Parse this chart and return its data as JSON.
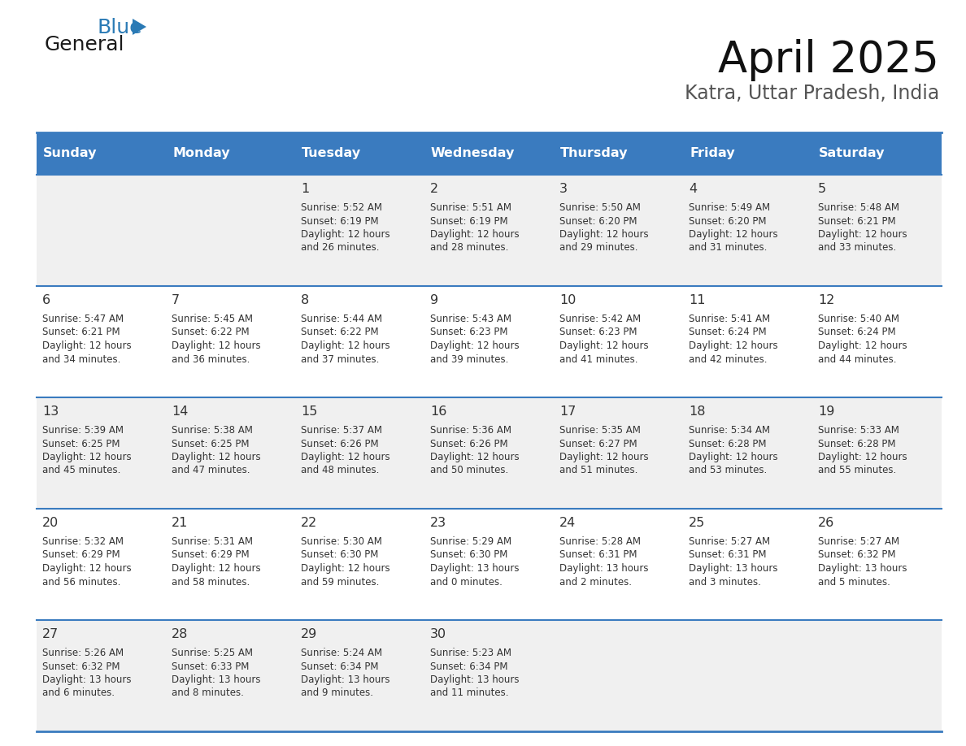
{
  "title": "April 2025",
  "subtitle": "Katra, Uttar Pradesh, India",
  "days_of_week": [
    "Sunday",
    "Monday",
    "Tuesday",
    "Wednesday",
    "Thursday",
    "Friday",
    "Saturday"
  ],
  "header_bg": "#3a7bbf",
  "header_text_color": "#ffffff",
  "row_bg_even": "#f0f0f0",
  "row_bg_odd": "#ffffff",
  "cell_text_color": "#333333",
  "border_color": "#3a7bbf",
  "logo_general_color": "#1a1a1a",
  "logo_blue_color": "#2a7ab5",
  "weeks": [
    [
      {
        "day": null,
        "sunrise": null,
        "sunset": null,
        "daylight_h": null,
        "daylight_m": null
      },
      {
        "day": null,
        "sunrise": null,
        "sunset": null,
        "daylight_h": null,
        "daylight_m": null
      },
      {
        "day": 1,
        "sunrise": "5:52 AM",
        "sunset": "6:19 PM",
        "daylight_h": "12 hours",
        "daylight_m": "26 minutes."
      },
      {
        "day": 2,
        "sunrise": "5:51 AM",
        "sunset": "6:19 PM",
        "daylight_h": "12 hours",
        "daylight_m": "28 minutes."
      },
      {
        "day": 3,
        "sunrise": "5:50 AM",
        "sunset": "6:20 PM",
        "daylight_h": "12 hours",
        "daylight_m": "29 minutes."
      },
      {
        "day": 4,
        "sunrise": "5:49 AM",
        "sunset": "6:20 PM",
        "daylight_h": "12 hours",
        "daylight_m": "31 minutes."
      },
      {
        "day": 5,
        "sunrise": "5:48 AM",
        "sunset": "6:21 PM",
        "daylight_h": "12 hours",
        "daylight_m": "33 minutes."
      }
    ],
    [
      {
        "day": 6,
        "sunrise": "5:47 AM",
        "sunset": "6:21 PM",
        "daylight_h": "12 hours",
        "daylight_m": "34 minutes."
      },
      {
        "day": 7,
        "sunrise": "5:45 AM",
        "sunset": "6:22 PM",
        "daylight_h": "12 hours",
        "daylight_m": "36 minutes."
      },
      {
        "day": 8,
        "sunrise": "5:44 AM",
        "sunset": "6:22 PM",
        "daylight_h": "12 hours",
        "daylight_m": "37 minutes."
      },
      {
        "day": 9,
        "sunrise": "5:43 AM",
        "sunset": "6:23 PM",
        "daylight_h": "12 hours",
        "daylight_m": "39 minutes."
      },
      {
        "day": 10,
        "sunrise": "5:42 AM",
        "sunset": "6:23 PM",
        "daylight_h": "12 hours",
        "daylight_m": "41 minutes."
      },
      {
        "day": 11,
        "sunrise": "5:41 AM",
        "sunset": "6:24 PM",
        "daylight_h": "12 hours",
        "daylight_m": "42 minutes."
      },
      {
        "day": 12,
        "sunrise": "5:40 AM",
        "sunset": "6:24 PM",
        "daylight_h": "12 hours",
        "daylight_m": "44 minutes."
      }
    ],
    [
      {
        "day": 13,
        "sunrise": "5:39 AM",
        "sunset": "6:25 PM",
        "daylight_h": "12 hours",
        "daylight_m": "45 minutes."
      },
      {
        "day": 14,
        "sunrise": "5:38 AM",
        "sunset": "6:25 PM",
        "daylight_h": "12 hours",
        "daylight_m": "47 minutes."
      },
      {
        "day": 15,
        "sunrise": "5:37 AM",
        "sunset": "6:26 PM",
        "daylight_h": "12 hours",
        "daylight_m": "48 minutes."
      },
      {
        "day": 16,
        "sunrise": "5:36 AM",
        "sunset": "6:26 PM",
        "daylight_h": "12 hours",
        "daylight_m": "50 minutes."
      },
      {
        "day": 17,
        "sunrise": "5:35 AM",
        "sunset": "6:27 PM",
        "daylight_h": "12 hours",
        "daylight_m": "51 minutes."
      },
      {
        "day": 18,
        "sunrise": "5:34 AM",
        "sunset": "6:28 PM",
        "daylight_h": "12 hours",
        "daylight_m": "53 minutes."
      },
      {
        "day": 19,
        "sunrise": "5:33 AM",
        "sunset": "6:28 PM",
        "daylight_h": "12 hours",
        "daylight_m": "55 minutes."
      }
    ],
    [
      {
        "day": 20,
        "sunrise": "5:32 AM",
        "sunset": "6:29 PM",
        "daylight_h": "12 hours",
        "daylight_m": "56 minutes."
      },
      {
        "day": 21,
        "sunrise": "5:31 AM",
        "sunset": "6:29 PM",
        "daylight_h": "12 hours",
        "daylight_m": "58 minutes."
      },
      {
        "day": 22,
        "sunrise": "5:30 AM",
        "sunset": "6:30 PM",
        "daylight_h": "12 hours",
        "daylight_m": "59 minutes."
      },
      {
        "day": 23,
        "sunrise": "5:29 AM",
        "sunset": "6:30 PM",
        "daylight_h": "13 hours",
        "daylight_m": "0 minutes."
      },
      {
        "day": 24,
        "sunrise": "5:28 AM",
        "sunset": "6:31 PM",
        "daylight_h": "13 hours",
        "daylight_m": "2 minutes."
      },
      {
        "day": 25,
        "sunrise": "5:27 AM",
        "sunset": "6:31 PM",
        "daylight_h": "13 hours",
        "daylight_m": "3 minutes."
      },
      {
        "day": 26,
        "sunrise": "5:27 AM",
        "sunset": "6:32 PM",
        "daylight_h": "13 hours",
        "daylight_m": "5 minutes."
      }
    ],
    [
      {
        "day": 27,
        "sunrise": "5:26 AM",
        "sunset": "6:32 PM",
        "daylight_h": "13 hours",
        "daylight_m": "6 minutes."
      },
      {
        "day": 28,
        "sunrise": "5:25 AM",
        "sunset": "6:33 PM",
        "daylight_h": "13 hours",
        "daylight_m": "8 minutes."
      },
      {
        "day": 29,
        "sunrise": "5:24 AM",
        "sunset": "6:34 PM",
        "daylight_h": "13 hours",
        "daylight_m": "9 minutes."
      },
      {
        "day": 30,
        "sunrise": "5:23 AM",
        "sunset": "6:34 PM",
        "daylight_h": "13 hours",
        "daylight_m": "11 minutes."
      },
      {
        "day": null,
        "sunrise": null,
        "sunset": null,
        "daylight_h": null,
        "daylight_m": null
      },
      {
        "day": null,
        "sunrise": null,
        "sunset": null,
        "daylight_h": null,
        "daylight_m": null
      },
      {
        "day": null,
        "sunrise": null,
        "sunset": null,
        "daylight_h": null,
        "daylight_m": null
      }
    ]
  ]
}
